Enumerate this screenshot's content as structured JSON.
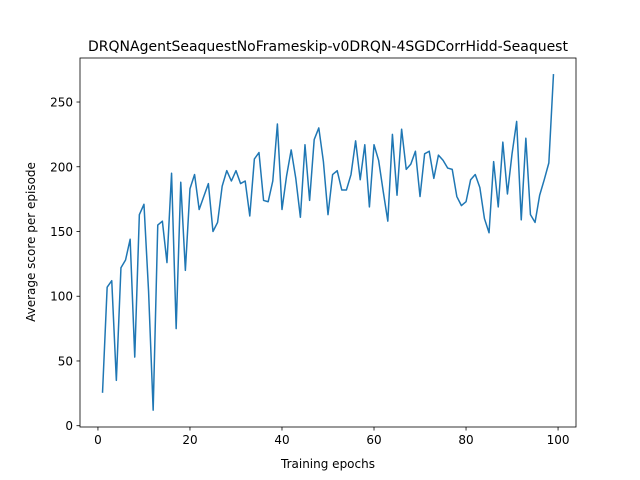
{
  "chart_data": {
    "type": "line",
    "title": "DRQNAgentSeaquestNoFrameskip-v0DRQN-4SGDCorrHidd-Seaquest",
    "xlabel": "Training epochs",
    "ylabel": "Average score per episode",
    "xlim": [
      -3.9,
      103.9
    ],
    "ylim": [
      -1,
      284
    ],
    "xticks": [
      0,
      20,
      40,
      60,
      80,
      100
    ],
    "yticks": [
      0,
      50,
      100,
      150,
      200,
      250
    ],
    "grid": false,
    "series": [
      {
        "color": "#1f77b4",
        "x": [
          1,
          2,
          3,
          4,
          5,
          6,
          7,
          8,
          9,
          10,
          11,
          12,
          13,
          14,
          15,
          16,
          17,
          18,
          19,
          20,
          21,
          22,
          23,
          24,
          25,
          26,
          27,
          28,
          29,
          30,
          31,
          32,
          33,
          34,
          35,
          36,
          37,
          38,
          39,
          40,
          41,
          42,
          43,
          44,
          45,
          46,
          47,
          48,
          49,
          50,
          51,
          52,
          53,
          54,
          55,
          56,
          57,
          58,
          59,
          60,
          61,
          62,
          63,
          64,
          65,
          66,
          67,
          68,
          69,
          70,
          71,
          72,
          73,
          74,
          75,
          76,
          77,
          78,
          79,
          80,
          81,
          82,
          83,
          84,
          85,
          86,
          87,
          88,
          89,
          90,
          91,
          92,
          93,
          94,
          95,
          96,
          97,
          98,
          99
        ],
        "values": [
          26,
          107,
          112,
          35,
          122,
          128,
          144,
          53,
          163,
          171,
          104,
          12,
          155,
          158,
          126,
          195,
          75,
          188,
          120,
          183,
          194,
          167,
          177,
          187,
          150,
          157,
          185,
          197,
          189,
          197,
          187,
          189,
          162,
          206,
          211,
          174,
          173,
          189,
          233,
          167,
          193,
          213,
          191,
          161,
          217,
          174,
          221,
          230,
          204,
          163,
          194,
          197,
          182,
          182,
          194,
          220,
          190,
          217,
          169,
          217,
          205,
          181,
          158,
          225,
          178,
          229,
          198,
          202,
          212,
          177,
          210,
          212,
          191,
          209,
          205,
          199,
          198,
          177,
          170,
          173,
          190,
          194,
          184,
          160,
          149,
          204,
          169,
          219,
          179,
          210,
          235,
          159,
          222,
          163,
          157,
          178,
          190,
          203,
          271
        ]
      }
    ]
  }
}
